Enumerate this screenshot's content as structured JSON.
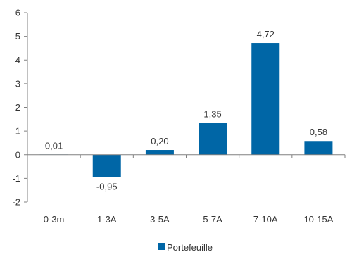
{
  "chart_data": {
    "type": "bar",
    "title": "",
    "xlabel": "",
    "ylabel": "",
    "categories": [
      "0-3m",
      "1-3A",
      "3-5A",
      "5-7A",
      "7-10A",
      "10-15A"
    ],
    "series": [
      {
        "name": "Portefeuille",
        "values": [
          0.01,
          -0.95,
          0.2,
          1.35,
          4.72,
          0.58
        ],
        "data_labels": [
          "0,01",
          "-0,95",
          "0,20",
          "1,35",
          "4,72",
          "0,58"
        ]
      }
    ],
    "ylim": [
      -2,
      6
    ],
    "yticks": [
      -2,
      -1,
      0,
      1,
      2,
      3,
      4,
      5,
      6
    ],
    "ytick_labels": [
      "-2",
      "-1",
      "0",
      "1",
      "2",
      "3",
      "4",
      "5",
      "6"
    ],
    "grid": false,
    "legend_position": "bottom-center",
    "bar_color": "#0066a6",
    "axis_color": "#808080"
  }
}
